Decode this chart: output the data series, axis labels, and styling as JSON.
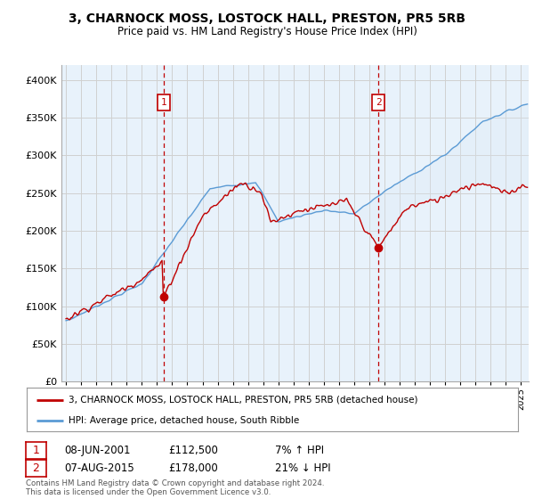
{
  "title": "3, CHARNOCK MOSS, LOSTOCK HALL, PRESTON, PR5 5RB",
  "subtitle": "Price paid vs. HM Land Registry's House Price Index (HPI)",
  "legend_line1": "3, CHARNOCK MOSS, LOSTOCK HALL, PRESTON, PR5 5RB (detached house)",
  "legend_line2": "HPI: Average price, detached house, South Ribble",
  "annotation1_date": "08-JUN-2001",
  "annotation1_price": "£112,500",
  "annotation1_hpi": "7% ↑ HPI",
  "annotation2_date": "07-AUG-2015",
  "annotation2_price": "£178,000",
  "annotation2_hpi": "21% ↓ HPI",
  "footer": "Contains HM Land Registry data © Crown copyright and database right 2024.\nThis data is licensed under the Open Government Licence v3.0.",
  "sale1_year": 2001.44,
  "sale1_price": 112500,
  "sale2_year": 2015.59,
  "sale2_price": 178000,
  "hpi_color": "#5b9bd5",
  "hpi_fill_color": "#dce9f5",
  "price_color": "#c00000",
  "dashed_color": "#c00000",
  "background_color": "#ffffff",
  "grid_color": "#d0d0d0",
  "ylim_min": 0,
  "ylim_max": 420000,
  "xlim_min": 1994.7,
  "xlim_max": 2025.5
}
